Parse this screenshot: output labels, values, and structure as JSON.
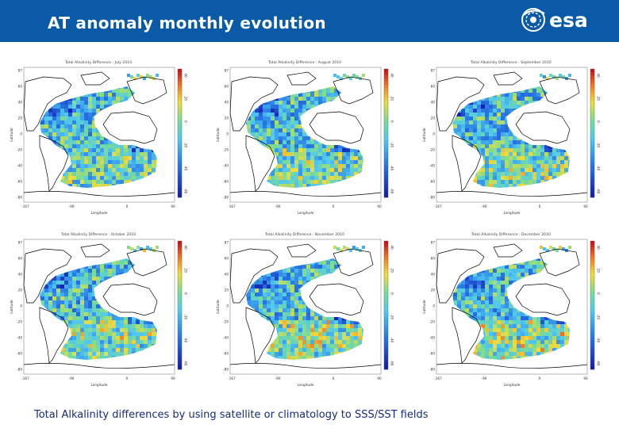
{
  "header": {
    "title": "AT anomaly monthly evolution",
    "logo_text": "esa",
    "background": "#0a5aa8"
  },
  "panels": [
    {
      "title": "Total Alkalinity Difference : July 2010"
    },
    {
      "title": "Total Alkalinity Difference : August 2010"
    },
    {
      "title": "Total Alkalinity Difference : September 2010"
    },
    {
      "title": "Total Alkalinity Difference : October 2010"
    },
    {
      "title": "Total Alkalinity Difference : November 2010"
    },
    {
      "title": "Total Alkalinity Difference : December 2010"
    }
  ],
  "axes": {
    "xlabel": "Longitude",
    "ylabel": "Latitude",
    "x_ticks": [
      "-167",
      "-90",
      "0",
      "90"
    ],
    "y_ticks": [
      "87",
      "60",
      "40",
      "20",
      "0",
      "-20",
      "-40",
      "-60",
      "-80"
    ],
    "colorbar_ticks": [
      "40",
      "20",
      "0",
      "-20",
      "-40",
      "-60"
    ]
  },
  "caption": "Total Alkalinity differences by using satellite or climatology to SSS/SST  fields",
  "colors": {
    "ocean_mid": "#4fc3f7",
    "ocean_high": "#e53935",
    "ocean_low": "#1e2fb5",
    "land": "#ffffff",
    "coast": "#000000",
    "caption": "#152c7a"
  }
}
